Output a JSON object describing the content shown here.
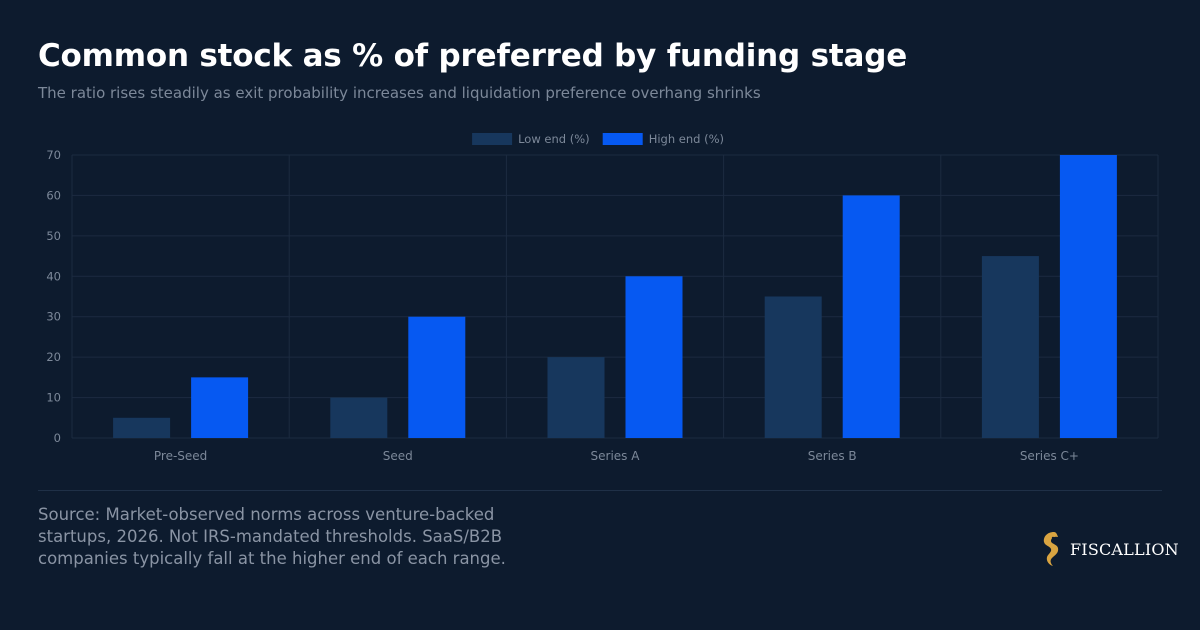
{
  "header": {
    "title": "Common stock as % of preferred by funding stage",
    "subtitle": "The ratio rises steadily as exit probability increases and liquidation preference overhang shrinks"
  },
  "footer": {
    "source_text": "Source: Market-observed norms across venture-backed startups, 2026. Not IRS-mandated thresholds. SaaS/B2B companies typically fall at the higher end of each range.",
    "brand_name": "FISCALLION",
    "brand_icon": "seahorse-logo-icon"
  },
  "colors": {
    "background": "#0d1b2e",
    "low": "#17375d",
    "high": "#0659f2",
    "grid": "#1c2b40",
    "tick_text": "#7c8899",
    "logo_gold": "#d9a441"
  },
  "chart_data": {
    "type": "bar",
    "categories": [
      "Pre-Seed",
      "Seed",
      "Series A",
      "Series B",
      "Series C+"
    ],
    "series": [
      {
        "name": "Low end (%)",
        "values": [
          5,
          10,
          20,
          35,
          45
        ]
      },
      {
        "name": "High end (%)",
        "values": [
          15,
          30,
          40,
          60,
          70
        ]
      }
    ],
    "ylim": [
      0,
      70
    ],
    "yticks": [
      0,
      10,
      20,
      30,
      40,
      50,
      60,
      70
    ],
    "legend": "top-center",
    "grid": true
  }
}
